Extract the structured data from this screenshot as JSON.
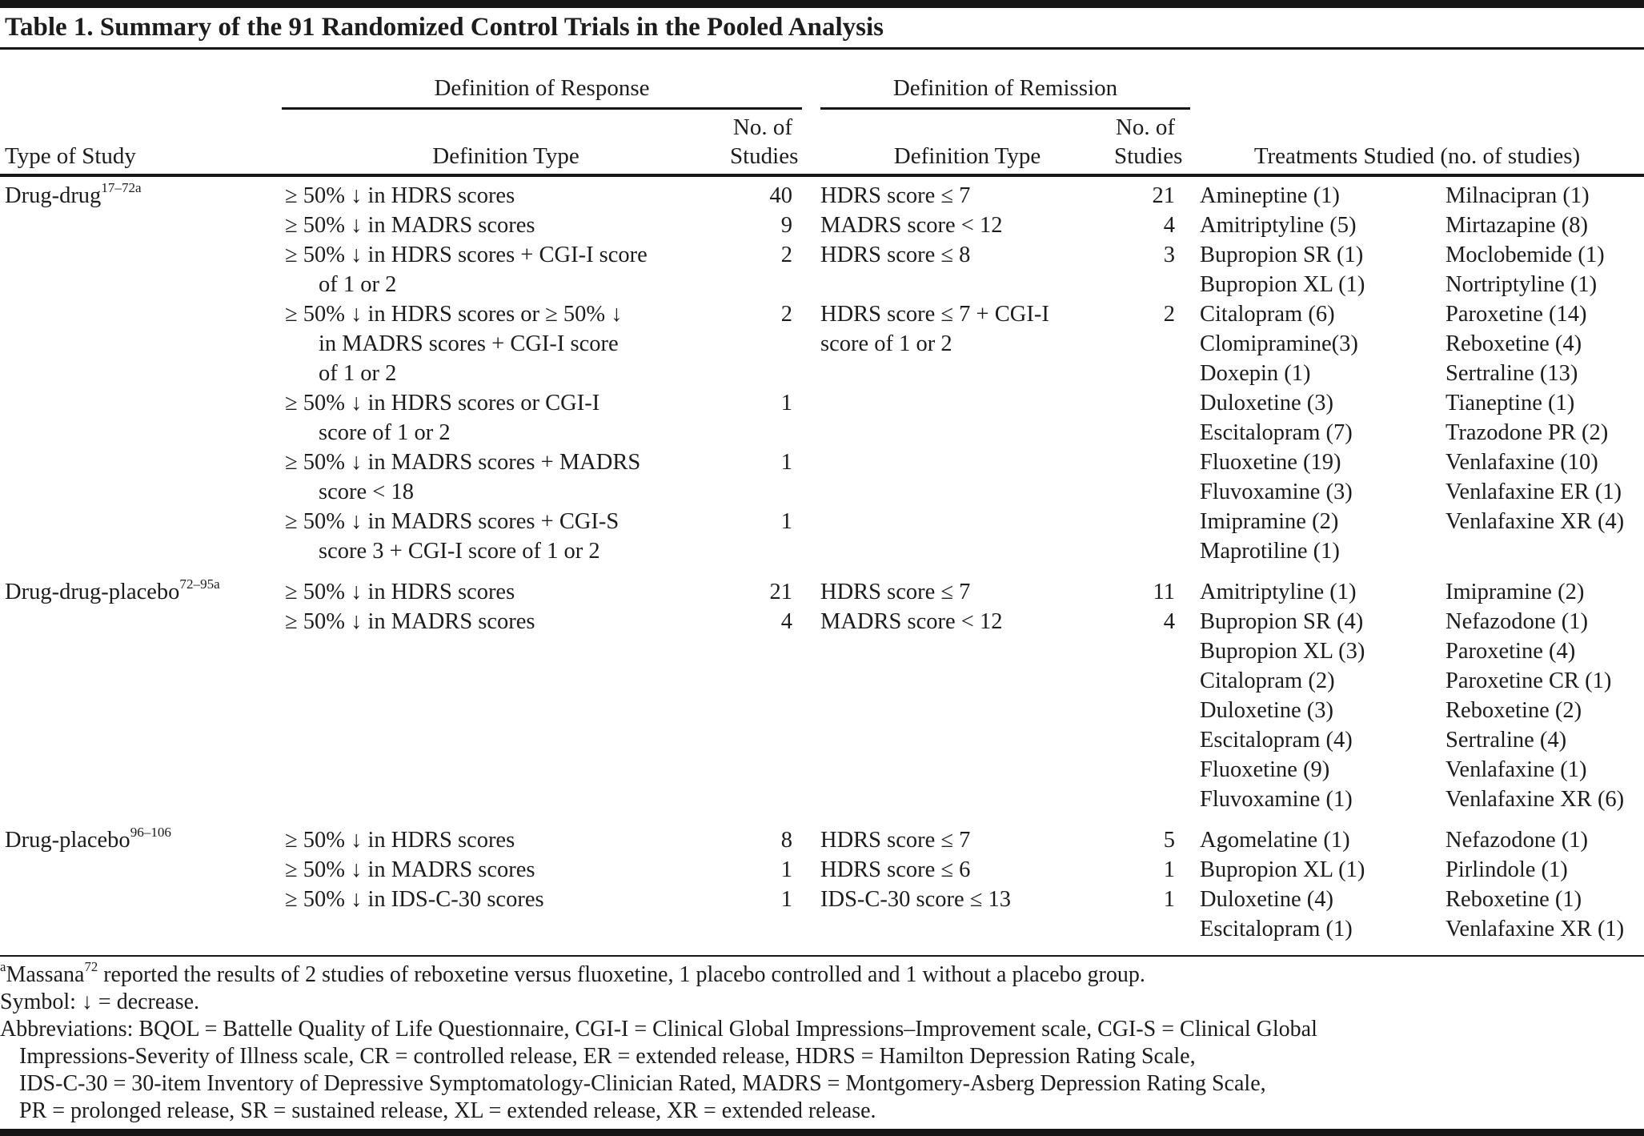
{
  "title": "Table 1. Summary of the 91 Randomized Control Trials in the Pooled Analysis",
  "colors": {
    "background": "#ffffff",
    "text": "#1c1c1c",
    "rule": "#161616"
  },
  "header": {
    "response_spanner": "Definition of Response",
    "remission_spanner": "Definition of Remission",
    "col_type_of_study": "Type of Study",
    "col_definition_type_response": "Definition Type",
    "col_definition_type_remission": "Definition Type",
    "no_of_line1": "No. of",
    "no_of_line2": "Studies",
    "col_treatments": "Treatments Studied (no. of studies)"
  },
  "sections": [
    {
      "study_label": "Drug-drug",
      "study_sup": "17–72a",
      "response_lines": [
        {
          "t": "≥ 50% ↓ in HDRS scores",
          "ind": false
        },
        {
          "t": "≥ 50% ↓ in MADRS scores",
          "ind": false
        },
        {
          "t": "≥ 50% ↓ in HDRS scores + CGI-I score",
          "ind": false
        },
        {
          "t": "of 1 or 2",
          "ind": true
        },
        {
          "t": "≥ 50% ↓ in HDRS scores or ≥ 50% ↓",
          "ind": false
        },
        {
          "t": "in MADRS scores + CGI-I score",
          "ind": true
        },
        {
          "t": "of 1 or 2",
          "ind": true
        },
        {
          "t": "≥ 50% ↓ in HDRS scores or CGI-I",
          "ind": false
        },
        {
          "t": "score of 1 or 2",
          "ind": true
        },
        {
          "t": "≥ 50% ↓ in MADRS scores + MADRS",
          "ind": false
        },
        {
          "t": "score < 18",
          "ind": true
        },
        {
          "t": "≥ 50% ↓ in MADRS scores + CGI-S",
          "ind": false
        },
        {
          "t": "score 3 + CGI-I score of 1 or 2",
          "ind": true
        }
      ],
      "response_counts": [
        "40",
        "9",
        "2",
        "",
        "2",
        "",
        "",
        "1",
        "",
        "1",
        "",
        "1",
        ""
      ],
      "remission_lines": [
        "HDRS score ≤ 7",
        "MADRS score < 12",
        "HDRS score ≤ 8",
        "",
        "HDRS score ≤ 7 + CGI-I",
        "score of 1 or 2",
        "",
        "",
        "",
        "",
        "",
        "",
        ""
      ],
      "remission_counts": [
        "21",
        "4",
        "3",
        "",
        "2",
        "",
        "",
        "",
        "",
        "",
        "",
        "",
        ""
      ],
      "treatments_col1": [
        "Amineptine (1)",
        "Amitriptyline (5)",
        "Bupropion SR (1)",
        "Bupropion XL (1)",
        "Citalopram (6)",
        "Clomipramine(3)",
        "Doxepin (1)",
        "Duloxetine (3)",
        "Escitalopram (7)",
        "Fluoxetine (19)",
        "Fluvoxamine (3)",
        "Imipramine (2)",
        "Maprotiline (1)"
      ],
      "treatments_col2": [
        "Milnacipran (1)",
        "Mirtazapine (8)",
        "Moclobemide (1)",
        "Nortriptyline (1)",
        "Paroxetine (14)",
        "Reboxetine (4)",
        "Sertraline (13)",
        "Tianeptine (1)",
        "Trazodone PR (2)",
        "Venlafaxine (10)",
        "Venlafaxine ER (1)",
        "Venlafaxine XR (4)",
        ""
      ]
    },
    {
      "study_label": "Drug-drug-placebo",
      "study_sup": "72–95a",
      "response_lines": [
        {
          "t": "≥ 50% ↓ in HDRS scores",
          "ind": false
        },
        {
          "t": "≥ 50% ↓ in MADRS scores",
          "ind": false
        }
      ],
      "response_counts": [
        "21",
        "4",
        "",
        "",
        "",
        "",
        "",
        ""
      ],
      "remission_lines": [
        "HDRS score ≤ 7",
        "MADRS score < 12",
        "",
        "",
        "",
        "",
        "",
        ""
      ],
      "remission_counts": [
        "11",
        "4",
        "",
        "",
        "",
        "",
        "",
        ""
      ],
      "treatments_col1": [
        "Amitriptyline (1)",
        "Bupropion SR (4)",
        "Bupropion XL (3)",
        "Citalopram (2)",
        "Duloxetine (3)",
        "Escitalopram (4)",
        "Fluoxetine (9)",
        "Fluvoxamine (1)"
      ],
      "treatments_col2": [
        "Imipramine (2)",
        "Nefazodone (1)",
        "Paroxetine (4)",
        "Paroxetine CR (1)",
        "Reboxetine (2)",
        "Sertraline (4)",
        "Venlafaxine (1)",
        "Venlafaxine XR (6)"
      ]
    },
    {
      "study_label": "Drug-placebo",
      "study_sup": "96–106",
      "response_lines": [
        {
          "t": "≥ 50% ↓ in HDRS scores",
          "ind": false
        },
        {
          "t": "≥ 50% ↓ in MADRS scores",
          "ind": false
        },
        {
          "t": "≥ 50% ↓ in IDS-C-30 scores",
          "ind": false
        }
      ],
      "response_counts": [
        "8",
        "1",
        "1",
        ""
      ],
      "remission_lines": [
        "HDRS score ≤ 7",
        "HDRS score ≤ 6",
        "IDS-C-30 score ≤ 13",
        ""
      ],
      "remission_counts": [
        "5",
        "1",
        "1",
        ""
      ],
      "treatments_col1": [
        "Agomelatine (1)",
        "Bupropion XL (1)",
        "Duloxetine (4)",
        "Escitalopram (1)"
      ],
      "treatments_col2": [
        "Nefazodone (1)",
        "Pirlindole (1)",
        "Reboxetine (1)",
        "Venlafaxine XR (1)"
      ]
    }
  ],
  "footnotes": {
    "massana": {
      "marker": "a",
      "name": "Massana",
      "ref": "72",
      "text": " reported the results of 2 studies of reboxetine versus fluoxetine, 1 placebo controlled and 1 without a placebo group."
    },
    "symbol": "Symbol: ↓ = decrease.",
    "abbreviations_lines": [
      "Abbreviations: BQOL = Battelle Quality of Life Questionnaire, CGI-I = Clinical Global Impressions–Improvement scale, CGI-S = Clinical Global",
      "Impressions-Severity of Illness scale, CR = controlled release, ER = extended release, HDRS = Hamilton Depression Rating Scale,",
      "IDS-C-30 = 30-item Inventory of Depressive Symptomatology-Clinician Rated, MADRS = Montgomery-Asberg Depression Rating Scale,",
      "PR = prolonged release, SR = sustained release, XL = extended release, XR = extended release."
    ]
  }
}
